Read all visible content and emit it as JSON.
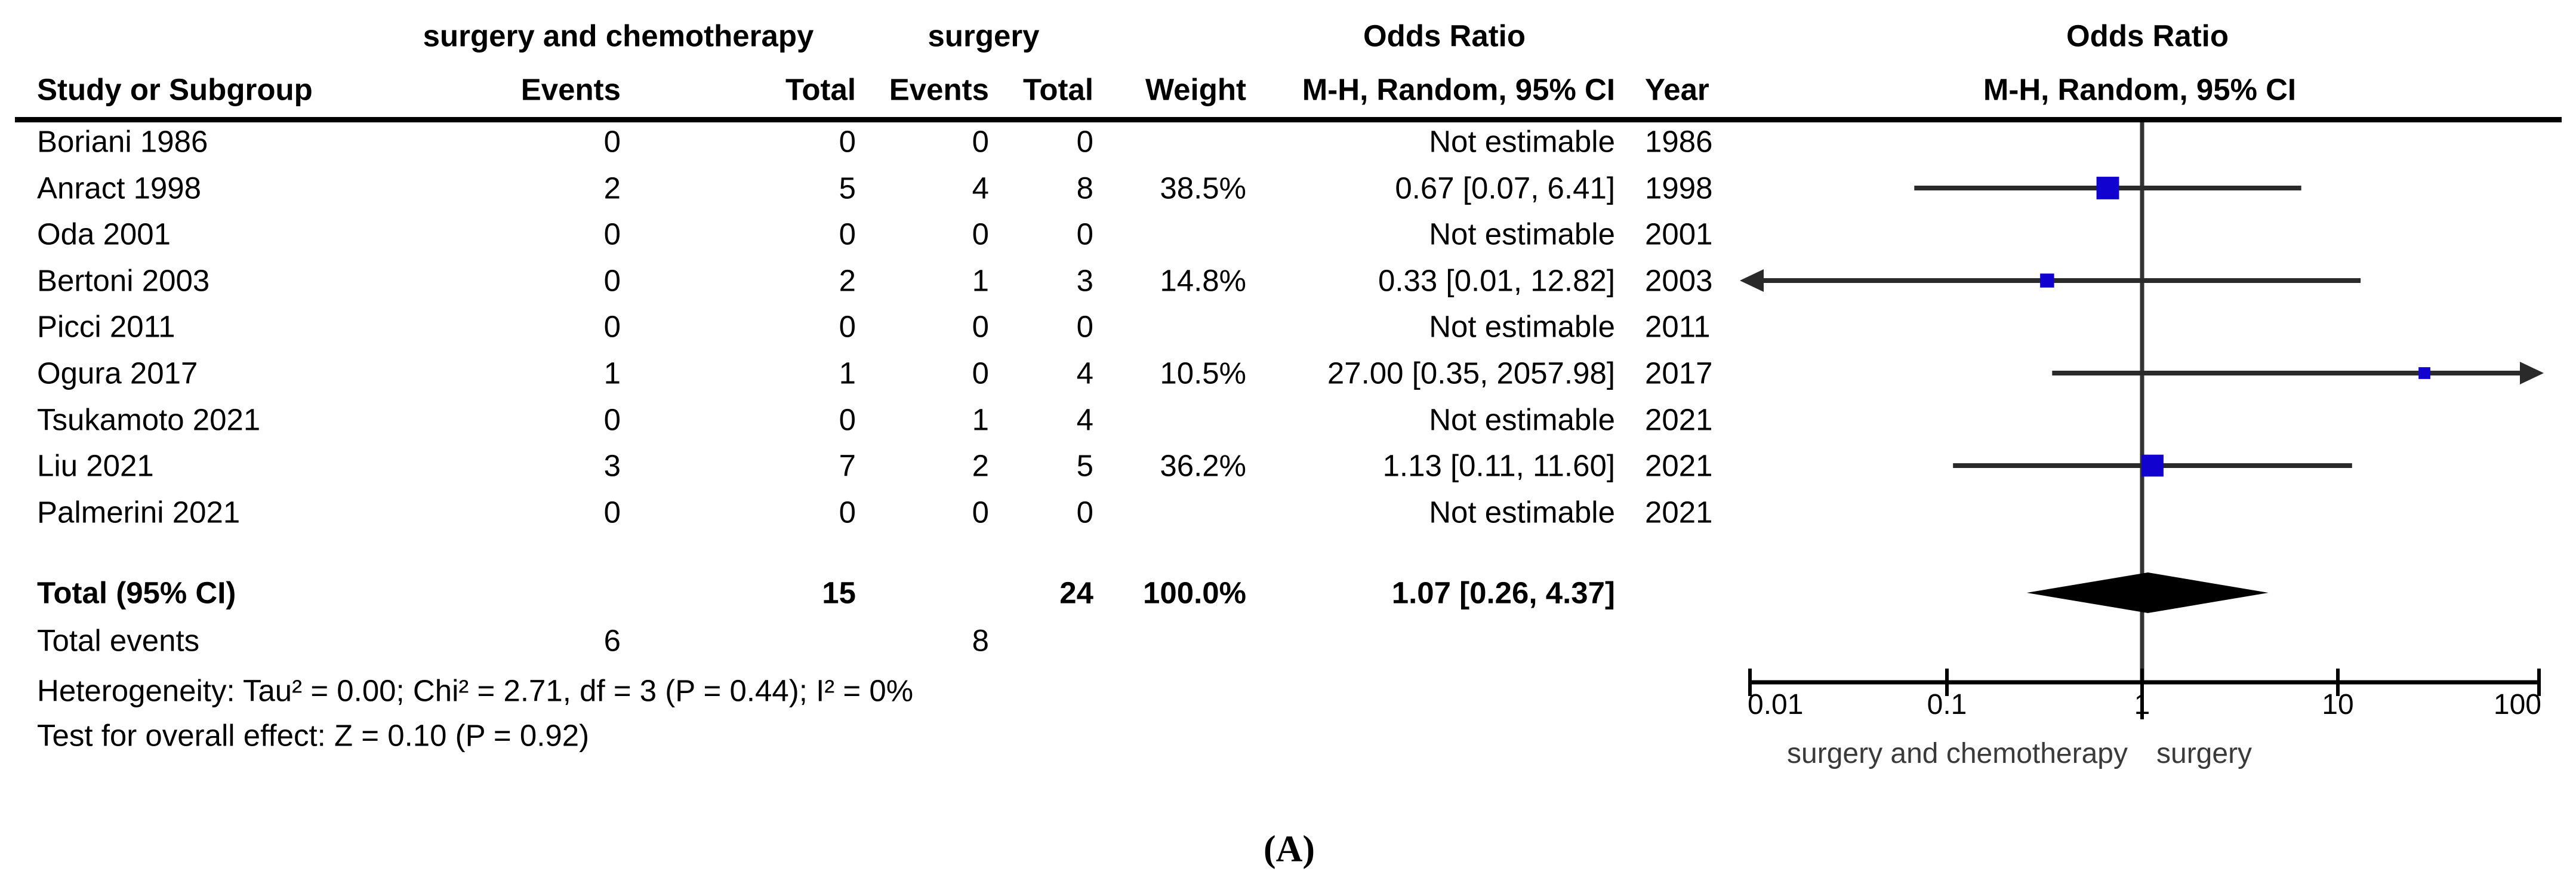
{
  "figure": {
    "caption": "(A)",
    "columns": {
      "study": "Study or Subgroup",
      "group1": "surgery and chemotherapy",
      "group2": "surgery",
      "events": "Events",
      "total": "Total",
      "weight": "Weight",
      "or_header": "Odds Ratio",
      "method": "M-H, Random, 95% CI",
      "year": "Year"
    }
  },
  "colors": {
    "square": "#1102cf",
    "ci_line": "#2a2a2a",
    "center_line": "#333333",
    "axis": "#000000",
    "diamond": "#000000",
    "favours_text": "#3a3a3a"
  },
  "chart_data": {
    "type": "forest",
    "x_scale": "log10",
    "axis_range": [
      0.01,
      100
    ],
    "axis_ticks": [
      "0.01",
      "0.1",
      "1",
      "10",
      "100"
    ],
    "favours_left": "surgery and chemotherapy",
    "favours_right": "surgery",
    "not_estimable_text": "Not estimable",
    "studies": [
      {
        "study": "Boriani 1986",
        "events1": "0",
        "total1": "0",
        "events2": "0",
        "total2": "0",
        "weight": "",
        "ci_text": "Not estimable",
        "year": "1986",
        "estimable": false
      },
      {
        "study": "Anract 1998",
        "events1": "2",
        "total1": "5",
        "events2": "4",
        "total2": "8",
        "weight": "38.5%",
        "ci_text": "0.67 [0.07, 6.41]",
        "year": "1998",
        "estimable": true,
        "or": 0.67,
        "low": 0.07,
        "high": 6.41,
        "weight_pct": 38.5,
        "arrow_left": false,
        "arrow_right": false
      },
      {
        "study": "Oda 2001",
        "events1": "0",
        "total1": "0",
        "events2": "0",
        "total2": "0",
        "weight": "",
        "ci_text": "Not estimable",
        "year": "2001",
        "estimable": false
      },
      {
        "study": "Bertoni 2003",
        "events1": "0",
        "total1": "2",
        "events2": "1",
        "total2": "3",
        "weight": "14.8%",
        "ci_text": "0.33 [0.01, 12.82]",
        "year": "2003",
        "estimable": true,
        "or": 0.33,
        "low": 0.01,
        "high": 12.82,
        "weight_pct": 14.8,
        "arrow_left": true,
        "arrow_right": false
      },
      {
        "study": "Picci 2011",
        "events1": "0",
        "total1": "0",
        "events2": "0",
        "total2": "0",
        "weight": "",
        "ci_text": "Not estimable",
        "year": "2011",
        "estimable": false
      },
      {
        "study": "Ogura 2017",
        "events1": "1",
        "total1": "1",
        "events2": "0",
        "total2": "4",
        "weight": "10.5%",
        "ci_text": "27.00 [0.35, 2057.98]",
        "year": "2017",
        "estimable": true,
        "or": 27.0,
        "low": 0.35,
        "high": 2057.98,
        "weight_pct": 10.5,
        "arrow_left": false,
        "arrow_right": true
      },
      {
        "study": "Tsukamoto 2021",
        "events1": "0",
        "total1": "0",
        "events2": "1",
        "total2": "4",
        "weight": "",
        "ci_text": "Not estimable",
        "year": "2021",
        "estimable": false
      },
      {
        "study": "Liu 2021",
        "events1": "3",
        "total1": "7",
        "events2": "2",
        "total2": "5",
        "weight": "36.2%",
        "ci_text": "1.13 [0.11, 11.60]",
        "year": "2021",
        "estimable": true,
        "or": 1.13,
        "low": 0.11,
        "high": 11.6,
        "weight_pct": 36.2,
        "arrow_left": false,
        "arrow_right": false
      },
      {
        "study": "Palmerini 2021",
        "events1": "0",
        "total1": "0",
        "events2": "0",
        "total2": "0",
        "weight": "",
        "ci_text": "Not estimable",
        "year": "2021",
        "estimable": false
      }
    ],
    "total": {
      "label": "Total (95% CI)",
      "total1": "15",
      "total2": "24",
      "weight": "100.0%",
      "ci_text": "1.07 [0.26, 4.37]",
      "or": 1.07,
      "low": 0.26,
      "high": 4.37
    },
    "total_events": {
      "label": "Total events",
      "events1": "6",
      "events2": "8"
    },
    "heterogeneity": "Heterogeneity: Tau² = 0.00; Chi² = 2.71, df = 3 (P = 0.44); I² = 0%",
    "overall_effect": "Test for overall effect: Z = 0.10 (P = 0.92)"
  }
}
